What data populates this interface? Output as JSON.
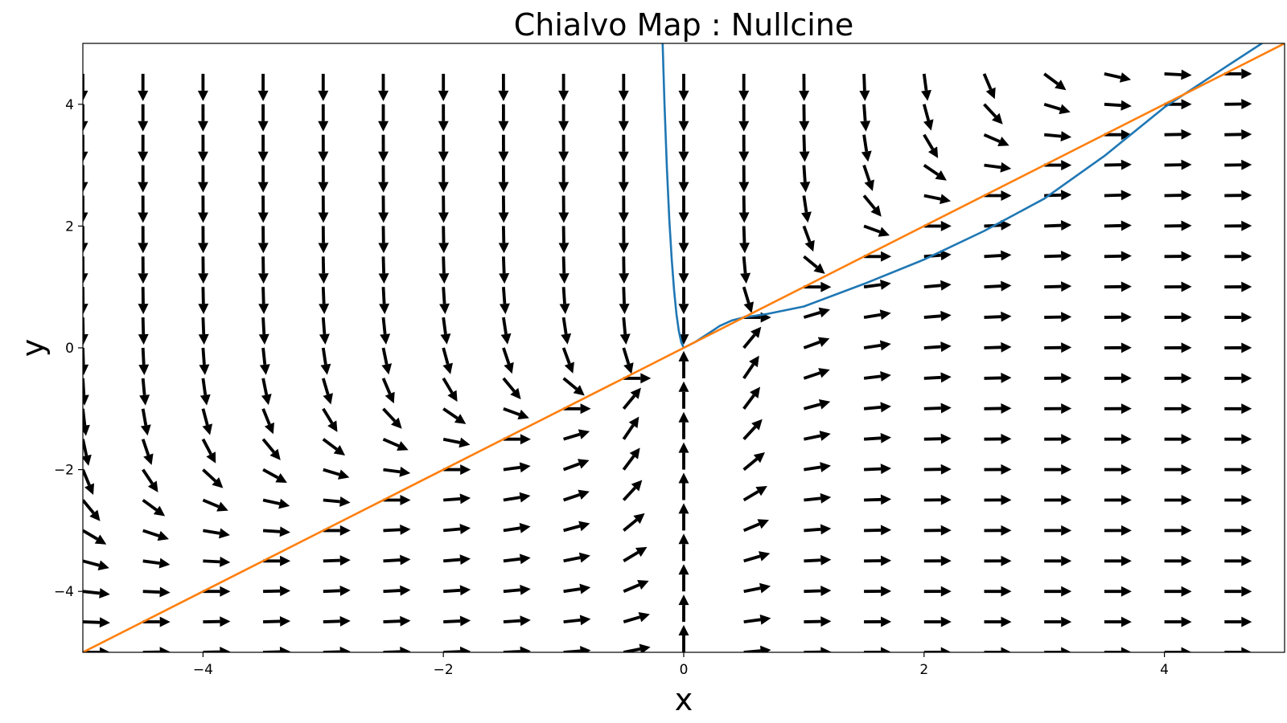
{
  "chart_data": {
    "type": "quiver",
    "title": "Chialvo Map : Nullcine",
    "xlabel": "x",
    "ylabel": "y",
    "xlim": [
      -5,
      5
    ],
    "ylim": [
      -5,
      5
    ],
    "grid": false,
    "x_ticks": [
      -4,
      -2,
      0,
      2,
      4
    ],
    "x_tick_labels": [
      "−4",
      "−2",
      "0",
      "2",
      "4"
    ],
    "y_ticks": [
      -4,
      -2,
      0,
      2,
      4
    ],
    "y_tick_labels": [
      "−4",
      "−2",
      "0",
      "2",
      "4"
    ],
    "vector_field": {
      "x_grid": [
        -5,
        -4.5,
        -4,
        -3.5,
        -3,
        -2.5,
        -2,
        -1.5,
        -1,
        -0.5,
        0,
        0.5,
        1,
        1.5,
        2,
        2.5,
        3,
        3.5,
        4,
        4.5
      ],
      "y_grid": [
        -5,
        -4.5,
        -4,
        -3.5,
        -3,
        -2.5,
        -2,
        -1.5,
        -1,
        -0.5,
        0,
        0.5,
        1,
        1.5,
        2,
        2.5,
        3,
        3.5,
        4,
        4.5
      ],
      "arrow_color": "#000000",
      "normalized": true
    },
    "series": [
      {
        "color": "#1f77b4",
        "x": [
          -0.18,
          -0.16,
          -0.14,
          -0.12,
          -0.1,
          -0.08,
          -0.06,
          -0.04,
          -0.02,
          0.0,
          0.1,
          0.2,
          0.3,
          0.4,
          0.5,
          0.7,
          1.0,
          1.5,
          2.0,
          2.5,
          3.0,
          3.5,
          4.0,
          4.5,
          4.85
        ],
        "y": [
          5.3,
          4.0,
          2.95,
          2.1,
          1.45,
          0.95,
          0.55,
          0.27,
          0.09,
          0.0,
          0.1,
          0.23,
          0.36,
          0.45,
          0.5,
          0.56,
          0.68,
          1.05,
          1.45,
          1.92,
          2.45,
          3.15,
          3.95,
          4.6,
          5.05
        ]
      },
      {
        "color": "#ff7f0e",
        "x": [
          -5,
          5
        ],
        "y": [
          -5,
          5
        ]
      }
    ]
  }
}
